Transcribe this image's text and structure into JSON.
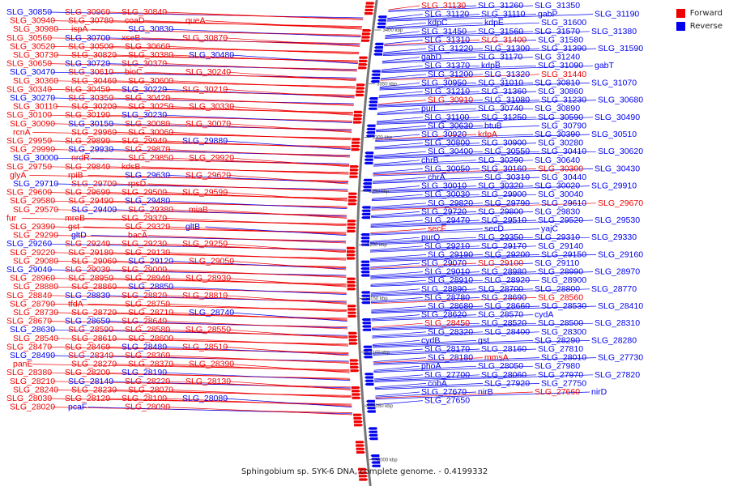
{
  "caption": "Sphingobium sp. SYK-6 DNA, complete genome. - 0.4199332",
  "legend": [
    {
      "label": "Forward",
      "color": "#ee0000"
    },
    {
      "label": "Reverse",
      "color": "#0000ee"
    }
  ],
  "scale_ticks": [
    "3400 kbp",
    "3350 kbp",
    "3300 kbp",
    "3250 kbp",
    "3200 kbp",
    "3150 kbp",
    "3100 kbp",
    "3050 kbp",
    "3000 kbp"
  ],
  "left_labels": [
    "SLG_30850",
    "SLG_30960",
    "SLG_30840",
    "SLG_30940",
    "SLG_30780",
    "coaD",
    "queA",
    "SLG_30980",
    "ispA",
    "SLG_30830",
    "SLG_30560",
    "SLG_30700",
    "xseB",
    "SLG_30870",
    "SLG_30520",
    "SLG_30500",
    "SLG_30660",
    "SLG_30730",
    "SLG_30820",
    "SLG_30380",
    "SLG_30480",
    "SLG_30650",
    "SLG_30720",
    "SLG_30370",
    "SLG_30470",
    "SLG_30610",
    "bioC",
    "SLG_30240",
    "SLG_30360",
    "SLG_30460",
    "SLG_30600",
    "SLG_30340",
    "SLG_30450",
    "SLG_30220",
    "SLG_30210",
    "SLG_30270",
    "SLG_30350",
    "SLG_30420",
    "SLG_30110",
    "SLG_30200",
    "SLG_30250",
    "SLG_30330",
    "SLG_30100",
    "SLG_30190",
    "SLG_30230",
    "SLG_30090",
    "SLG_30150",
    "SLG_30080",
    "SLG_30070",
    "rcnA",
    "SLG_29960",
    "SLG_30060",
    "SLG_29950",
    "SLG_29890",
    "SLG_29940",
    "SLG_29880",
    "SLG_29990",
    "SLG_29930",
    "SLG_29870",
    "SLG_30000",
    "nrdR",
    "SLG_29850",
    "SLG_29920",
    "SLG_29750",
    "SLG_29840",
    "kdsB",
    "glyA",
    "rpiB",
    "SLG_29630",
    "SLG_29620",
    "SLG_29710",
    "SLG_29700",
    "rpsD",
    "SLG_29600",
    "SLG_29690",
    "SLG_29500",
    "SLG_29590",
    "SLG_29580",
    "SLG_29490",
    "SLG_29480",
    "SLG_29570",
    "SLG_29400",
    "SLG_29380",
    "miaB",
    "fur",
    "mreB",
    "SLG_29370",
    "SLG_29390",
    "gst",
    "SLG_29320",
    "gltB",
    "SLG_29290",
    "gltD",
    "bacA",
    "SLG_29260",
    "SLG_29240",
    "SLG_29230",
    "SLG_29250",
    "SLG_29220",
    "SLG_29180",
    "SLG_29130",
    "SLG_29080",
    "SLG_29060",
    "SLG_29120",
    "SLG_29050",
    "SLG_29040",
    "SLG_29030",
    "SLG_29000",
    "SLG_28960",
    "SLG_28950",
    "SLG_28940",
    "SLG_28930",
    "SLG_28880",
    "SLG_28860",
    "SLG_28850",
    "SLG_28840",
    "SLG_28830",
    "SLG_28820",
    "SLG_28810",
    "SLG_28790",
    "tfdA",
    "SLG_28750",
    "SLG_28730",
    "SLG_28720",
    "SLG_28710",
    "SLG_28740",
    "SLG_28670",
    "SLG_28650",
    "SLG_28640",
    "SLG_28630",
    "SLG_28590",
    "SLG_28580",
    "SLG_28550",
    "SLG_28540",
    "SLG_28610",
    "SLG_28600",
    "SLG_28470",
    "SLG_28460",
    "SLG_28480",
    "SLG_28510",
    "SLG_28490",
    "SLG_28340",
    "SLG_28360",
    "panE",
    "SLG_28270",
    "SLG_28370",
    "SLG_28390",
    "SLG_28380",
    "SLG_28200",
    "SLG_28190",
    "SLG_28210",
    "SLG_28140",
    "SLG_28220",
    "SLG_28130",
    "SLG_28240",
    "SLG_28230",
    "SLG_28070",
    "SLG_28030",
    "SLG_28120",
    "SLG_28100",
    "SLG_28080",
    "SLG_28020",
    "pcaF",
    "SLG_28090"
  ],
  "right_labels": [
    "SLG_31130",
    "SLG_31260",
    "SLG_31350",
    "SLG_31120",
    "SLG_31110",
    "gabP",
    "SLG_31190",
    "kdpC",
    "kdpE",
    "SLG_31600",
    "SLG_31450",
    "SLG_31560",
    "SLG_31570",
    "SLG_31380",
    "SLG_31310",
    "SLG_31400",
    "SLG_31580",
    "SLG_31220",
    "SLG_31300",
    "SLG_31390",
    "SLG_31590",
    "gabD",
    "SLG_31170",
    "SLG_31240",
    "SLG_31370",
    "kdpB",
    "SLG_31090",
    "gabT",
    "SLG_31200",
    "SLG_31320",
    "SLG_31440",
    "SLG_30950",
    "SLG_31010",
    "SLG_30810",
    "SLG_31070",
    "SLG_31210",
    "SLG_31360",
    "SLG_30860",
    "SLG_30910",
    "SLG_31080",
    "SLG_31230",
    "SLG_30680",
    "purL",
    "SLG_30740",
    "SLG_30890",
    "SLG_31100",
    "SLG_31250",
    "SLG_30590",
    "SLG_30490",
    "SLG_30630",
    "btuB",
    "SLG_30790",
    "SLG_30920",
    "kdpA",
    "SLG_30390",
    "SLG_30510",
    "SLG_30800",
    "SLG_30900",
    "SLG_30280",
    "SLG_30400",
    "SLG_30550",
    "SLG_30410",
    "SLG_30620",
    "chrB",
    "SLG_30290",
    "SLG_30640",
    "SLG_30050",
    "SLG_30160",
    "SLG_30300",
    "SLG_30430",
    "chrA",
    "SLG_30310",
    "SLG_30440",
    "SLG_30010",
    "SLG_30320",
    "SLG_30020",
    "SLG_29910",
    "SLG_30030",
    "SLG_29900",
    "SLG_30040",
    "SLG_29820",
    "SLG_29790",
    "SLG_29610",
    "SLG_29670",
    "SLG_29720",
    "SLG_29800",
    "SLG_29830",
    "SLG_29470",
    "SLG_29510",
    "SLG_29520",
    "SLG_29530",
    "secF",
    "secD",
    "yajC",
    "purQ",
    "SLG_29350",
    "SLG_29310",
    "SLG_29330",
    "SLG_29210",
    "SLG_29170",
    "SLG_29140",
    "SLG_29190",
    "SLG_29200",
    "SLG_29150",
    "SLG_29160",
    "SLG_29070",
    "SLG_29100",
    "SLG_29110",
    "SLG_29010",
    "SLG_28980",
    "SLG_28990",
    "SLG_28970",
    "SLG_28910",
    "SLG_28920",
    "SLG_28900",
    "SLG_28890",
    "SLG_28700",
    "SLG_28800",
    "SLG_28770",
    "SLG_28780",
    "SLG_28690",
    "SLG_28560",
    "SLG_28680",
    "SLG_28660",
    "SLG_28530",
    "SLG_28410",
    "SLG_28620",
    "SLG_28570",
    "cydA",
    "SLG_28450",
    "SLG_28520",
    "SLG_28500",
    "SLG_28310",
    "SLG_28320",
    "SLG_28400",
    "SLG_28300",
    "cydB",
    "gst",
    "SLG_28290",
    "SLG_28280",
    "SLG_28170",
    "SLG_28160",
    "SLG_27810",
    "SLG_28180",
    "mmsA",
    "SLG_28010",
    "SLG_27730",
    "phoA",
    "SLG_28050",
    "SLG_27980",
    "SLG_27700",
    "SLG_28060",
    "SLG_27970",
    "SLG_27820",
    "cobA",
    "SLG_27920",
    "SLG_27750",
    "SLG_27670",
    "nirB",
    "SLG_27660",
    "nirD",
    "SLG_27650"
  ]
}
